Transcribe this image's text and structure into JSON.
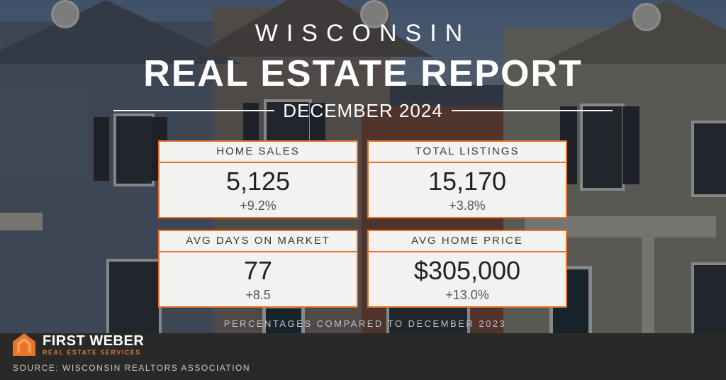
{
  "header": {
    "state": "WISCONSIN",
    "title": "REAL ESTATE REPORT",
    "period": "DECEMBER 2024"
  },
  "stats": [
    {
      "label": "HOME SALES",
      "value": "5,125",
      "change": "+9.2%"
    },
    {
      "label": "TOTAL LISTINGS",
      "value": "15,170",
      "change": "+3.8%"
    },
    {
      "label": "AVG DAYS ON MARKET",
      "value": "77",
      "change": "+8.5"
    },
    {
      "label": "AVG HOME PRICE",
      "value": "$305,000",
      "change": "+13.0%"
    }
  ],
  "note": "PERCENTAGES COMPARED TO DECEMBER 2023",
  "brand": {
    "name": "FIRST WEBER",
    "tagline": "REAL ESTATE SERVICES",
    "accent": "#e8742a"
  },
  "source": "SOURCE: WISCONSIN REALTORS ASSOCIATION"
}
